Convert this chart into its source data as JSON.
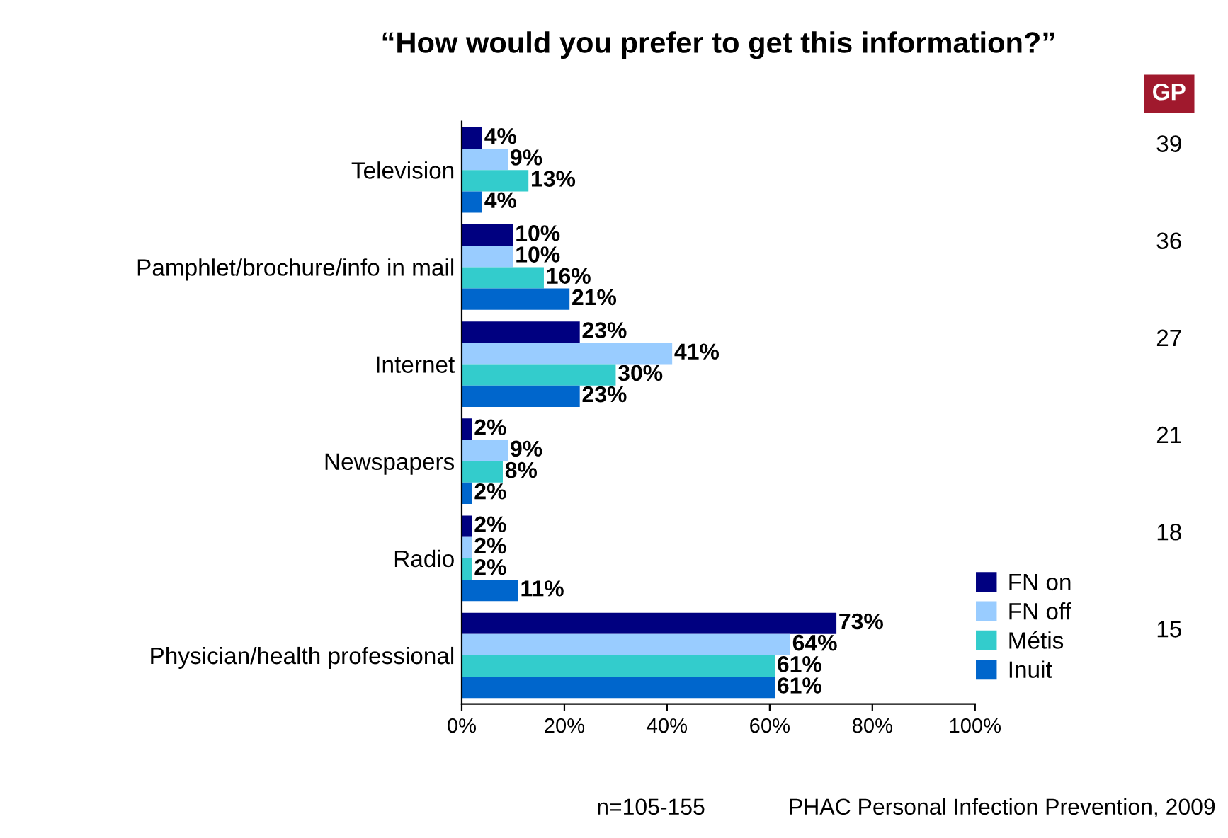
{
  "chart_data": {
    "type": "bar",
    "orientation": "horizontal",
    "title": "“How would you prefer to get this information?”",
    "categories": [
      "Television",
      "Pamphlet/brochure/info in mail",
      "Internet",
      "Newspapers",
      "Radio",
      "Physician/health professional"
    ],
    "series": [
      {
        "name": "FN on",
        "color": "#000080",
        "values": [
          4,
          10,
          23,
          2,
          2,
          73
        ],
        "value_labels": [
          "4%",
          "10%",
          "23%",
          "2%",
          "2%",
          "73%"
        ]
      },
      {
        "name": "FN off",
        "color": "#99ccff",
        "values": [
          9,
          10,
          41,
          9,
          2,
          64
        ],
        "value_labels": [
          "9%",
          "10%",
          "41%",
          "9%",
          "2%",
          "64%"
        ]
      },
      {
        "name": "Métis",
        "color": "#33cccc",
        "values": [
          13,
          16,
          30,
          8,
          2,
          61
        ],
        "value_labels": [
          "13%",
          "16%",
          "30%",
          "8%",
          "2%",
          "61%"
        ]
      },
      {
        "name": "Inuit",
        "color": "#0066cc",
        "values": [
          4,
          21,
          23,
          2,
          11,
          61
        ],
        "value_labels": [
          "4%",
          "21%",
          "23%",
          "2%",
          "11%",
          "61%"
        ]
      }
    ],
    "xlim": [
      0,
      100
    ],
    "xticks": [
      {
        "value": 0,
        "label": "0%"
      },
      {
        "value": 20,
        "label": "20%"
      },
      {
        "value": 40,
        "label": "40%"
      },
      {
        "value": 60,
        "label": "60%"
      },
      {
        "value": 80,
        "label": "80%"
      },
      {
        "value": 100,
        "label": "100%"
      }
    ],
    "grid": false,
    "legend": "bottom right",
    "annotations": [
      "GP",
      "39",
      "36",
      "27",
      "21",
      "18",
      "15",
      "n=105-155",
      "PHAC Personal Infection Prevention, 2009"
    ]
  }
}
